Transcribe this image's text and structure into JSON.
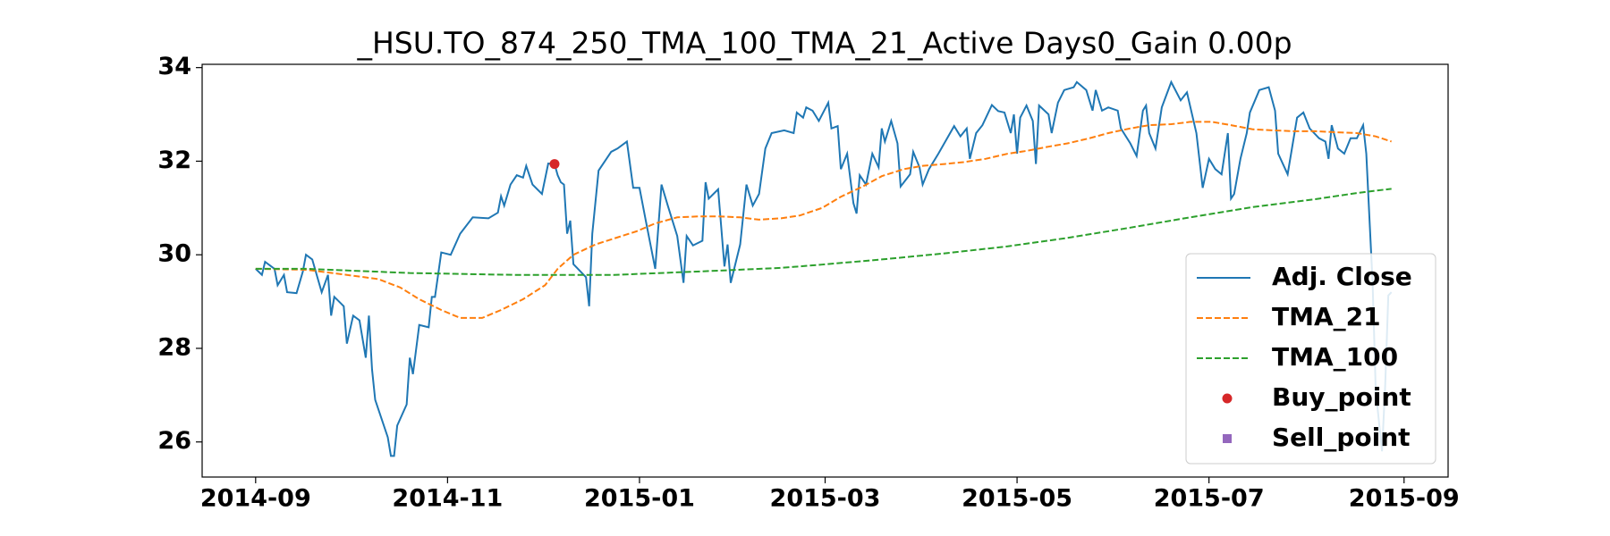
{
  "chart_data": {
    "type": "line",
    "title": "_HSU.TO_874_250_TMA_100_TMA_21_Active Days0_Gain   0.00p",
    "xlim": [
      -17,
      379
    ],
    "xticks": [
      {
        "value": 0,
        "label": "2014-09"
      },
      {
        "value": 61,
        "label": "2014-11"
      },
      {
        "value": 122,
        "label": "2015-01"
      },
      {
        "value": 181,
        "label": "2015-03"
      },
      {
        "value": 242,
        "label": "2015-05"
      },
      {
        "value": 303,
        "label": "2015-07"
      },
      {
        "value": 365,
        "label": "2015-09"
      }
    ],
    "ylim": [
      25.25,
      34.07
    ],
    "yticks": [
      26,
      28,
      30,
      32,
      34
    ],
    "grid": false,
    "legend": "lower right",
    "series": [
      {
        "name": "Adj. Close",
        "color": "#1f77b4",
        "linestyle": "solid",
        "x": [
          0,
          2,
          3,
          6,
          7,
          9,
          10,
          13,
          15,
          16,
          18,
          21,
          23,
          24,
          25,
          28,
          29,
          31,
          33,
          35,
          36,
          37,
          38,
          42,
          43,
          44,
          45,
          48,
          49,
          50,
          52,
          55,
          56,
          57,
          59,
          62,
          65,
          69,
          74,
          77,
          78,
          79,
          81,
          83,
          85,
          86,
          88,
          91,
          93,
          95,
          96,
          97,
          98,
          99,
          100,
          101,
          105,
          106,
          107,
          109,
          111,
          113,
          115,
          118,
          120,
          122,
          124,
          127,
          129,
          131,
          134,
          136,
          137,
          139,
          142,
          143,
          144,
          147,
          149,
          150,
          151,
          154,
          156,
          158,
          160,
          162,
          164,
          168,
          171,
          172,
          174,
          175,
          177,
          179,
          182,
          183,
          185,
          186,
          188,
          190,
          191,
          192,
          194,
          196,
          198,
          199,
          200,
          202,
          204,
          205,
          208,
          209,
          211,
          212,
          214,
          217,
          222,
          224,
          226,
          227,
          229,
          231,
          234,
          236,
          238,
          240,
          241,
          242,
          243,
          245,
          247,
          248,
          249,
          252,
          253,
          255,
          257,
          260,
          261,
          264,
          266,
          267,
          269,
          271,
          274,
          275,
          278,
          280,
          282,
          283,
          284,
          286,
          288,
          291,
          294,
          296,
          299,
          301,
          303,
          305,
          307,
          309,
          310,
          311,
          313,
          315,
          316,
          319,
          322,
          324,
          325,
          328,
          331,
          333,
          335,
          338,
          340,
          341,
          342,
          344,
          346,
          348,
          350,
          352,
          353,
          355,
          356,
          358,
          359,
          360,
          361
        ],
        "values": [
          29.7,
          29.57,
          29.85,
          29.7,
          29.35,
          29.57,
          29.2,
          29.18,
          29.64,
          30.0,
          29.9,
          29.2,
          29.57,
          28.7,
          29.1,
          28.9,
          28.1,
          28.7,
          28.6,
          27.8,
          28.7,
          27.55,
          26.9,
          26.1,
          25.7,
          25.7,
          26.35,
          26.8,
          27.8,
          27.45,
          28.5,
          28.45,
          29.1,
          29.1,
          30.05,
          30.0,
          30.45,
          30.8,
          30.78,
          30.9,
          31.25,
          31.05,
          31.5,
          31.7,
          31.65,
          31.9,
          31.5,
          31.3,
          31.95,
          31.94,
          31.7,
          31.55,
          31.5,
          30.45,
          30.73,
          29.8,
          29.52,
          28.9,
          30.45,
          31.8,
          32.0,
          32.2,
          32.27,
          32.42,
          31.43,
          31.43,
          30.73,
          29.7,
          31.5,
          31.05,
          30.4,
          29.4,
          30.4,
          30.2,
          30.3,
          31.55,
          31.2,
          31.4,
          29.75,
          30.22,
          29.4,
          30.22,
          31.5,
          31.05,
          31.3,
          32.27,
          32.6,
          32.66,
          32.6,
          33.04,
          32.93,
          33.15,
          33.08,
          32.86,
          33.25,
          32.7,
          32.75,
          31.83,
          32.16,
          31.1,
          30.88,
          31.7,
          31.5,
          32.16,
          31.87,
          32.7,
          32.42,
          32.86,
          32.38,
          31.46,
          31.72,
          32.2,
          31.87,
          31.5,
          31.83,
          32.16,
          32.75,
          32.53,
          32.7,
          32.05,
          32.6,
          32.77,
          33.2,
          33.07,
          33.04,
          32.6,
          33.0,
          32.16,
          32.93,
          33.19,
          32.86,
          31.94,
          33.19,
          33.0,
          32.6,
          33.25,
          33.52,
          33.58,
          33.69,
          33.52,
          33.08,
          33.52,
          33.08,
          33.15,
          33.08,
          32.7,
          32.38,
          32.11,
          33.08,
          33.19,
          32.6,
          32.27,
          33.15,
          33.69,
          33.3,
          33.47,
          32.6,
          31.43,
          32.05,
          31.83,
          31.72,
          32.6,
          31.2,
          31.3,
          32.05,
          32.6,
          33.04,
          33.52,
          33.58,
          33.08,
          32.16,
          31.72,
          32.93,
          33.04,
          32.7,
          32.49,
          32.42,
          32.05,
          32.77,
          32.27,
          32.16,
          32.49,
          32.49,
          32.77,
          32.16,
          29.4,
          27.1,
          25.8,
          27.2,
          29.13,
          29.2
        ]
      },
      {
        "name": "TMA_21",
        "color": "#ff7f0e",
        "linestyle": "dashed",
        "x": [
          0,
          16,
          29,
          39,
          46,
          52,
          59,
          65,
          72,
          78,
          85,
          92,
          96,
          101,
          108,
          114,
          121,
          127,
          134,
          141,
          147,
          154,
          160,
          167,
          173,
          180,
          186,
          193,
          199,
          206,
          212,
          219,
          225,
          232,
          239,
          245,
          252,
          258,
          265,
          271,
          278,
          284,
          291,
          297,
          304,
          310,
          317,
          323,
          330,
          337,
          343,
          350,
          356,
          361
        ],
        "values": [
          29.7,
          29.68,
          29.57,
          29.48,
          29.3,
          29.05,
          28.82,
          28.65,
          28.65,
          28.82,
          29.05,
          29.35,
          29.7,
          30.0,
          30.22,
          30.35,
          30.5,
          30.67,
          30.8,
          30.82,
          30.82,
          30.8,
          30.75,
          30.78,
          30.84,
          31.0,
          31.24,
          31.46,
          31.68,
          31.83,
          31.9,
          31.94,
          31.98,
          32.05,
          32.16,
          32.22,
          32.31,
          32.38,
          32.49,
          32.6,
          32.7,
          32.77,
          32.79,
          32.84,
          32.84,
          32.77,
          32.68,
          32.66,
          32.64,
          32.64,
          32.62,
          32.6,
          32.53,
          32.42
        ]
      },
      {
        "name": "TMA_100",
        "color": "#2ca02c",
        "linestyle": "dashed",
        "x": [
          0,
          16,
          49,
          82,
          101,
          114,
          147,
          167,
          180,
          199,
          219,
          239,
          258,
          278,
          297,
          317,
          337,
          350,
          361
        ],
        "values": [
          29.7,
          29.7,
          29.61,
          29.57,
          29.57,
          29.57,
          29.66,
          29.72,
          29.79,
          29.9,
          30.03,
          30.18,
          30.36,
          30.58,
          30.8,
          31.02,
          31.19,
          31.32,
          31.41
        ]
      },
      {
        "name": "Buy_point",
        "color": "#d62728",
        "marker": "circle",
        "x": [
          95
        ],
        "values": [
          31.94
        ]
      },
      {
        "name": "Sell_point",
        "color": "#9467bd",
        "marker": "square",
        "x": [],
        "values": []
      }
    ]
  }
}
